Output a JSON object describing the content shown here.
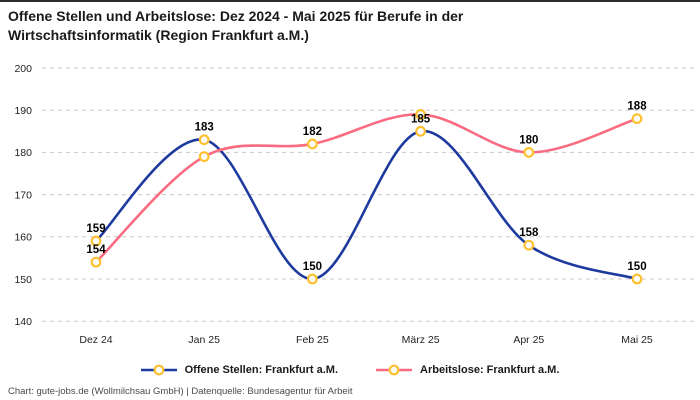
{
  "page": {
    "title_line1": "Offene Stellen und Arbeitslose: Dez 2024 - Mai 2025 für Berufe in der",
    "title_line2": "Wirtschaftsinformatik (Region Frankfurt a.M.)",
    "footer": "Chart: gute-jobs.de (Wollmilchsau GmbH) | Datenquelle: Bundesagentur für Arbeit"
  },
  "chart_data": {
    "type": "line",
    "title": "Offene Stellen und Arbeitslose: Dez 2024 - Mai 2025 für Berufe in der Wirtschaftsinformatik (Region Frankfurt a.M.)",
    "categories": [
      "Dez 24",
      "Jan 25",
      "Feb 25",
      "März 25",
      "Apr 25",
      "Mai 25"
    ],
    "yticks": [
      200,
      190,
      180,
      170,
      160,
      150,
      140
    ],
    "ylim": [
      140,
      200
    ],
    "grid": "horizontal-dashed",
    "legend_position": "bottom-center",
    "grid_color": "#c8c8c8",
    "tick_color": "#222222",
    "marker": {
      "shape": "open-circle",
      "color": "#FDC030",
      "fill": "#FFFFFF"
    },
    "series": [
      {
        "name": "Offene Stellen: Frankfurt a.M.",
        "color": "#1E3A9E",
        "values": [
          159,
          183,
          150,
          185,
          158,
          150
        ],
        "hidden_value_labels": []
      },
      {
        "name": "Arbeitslose: Frankfurt a.M.",
        "color": "#F96B80",
        "values": [
          154,
          179,
          182,
          189,
          180,
          188
        ],
        "hidden_value_labels": [
          1,
          3
        ]
      }
    ]
  }
}
